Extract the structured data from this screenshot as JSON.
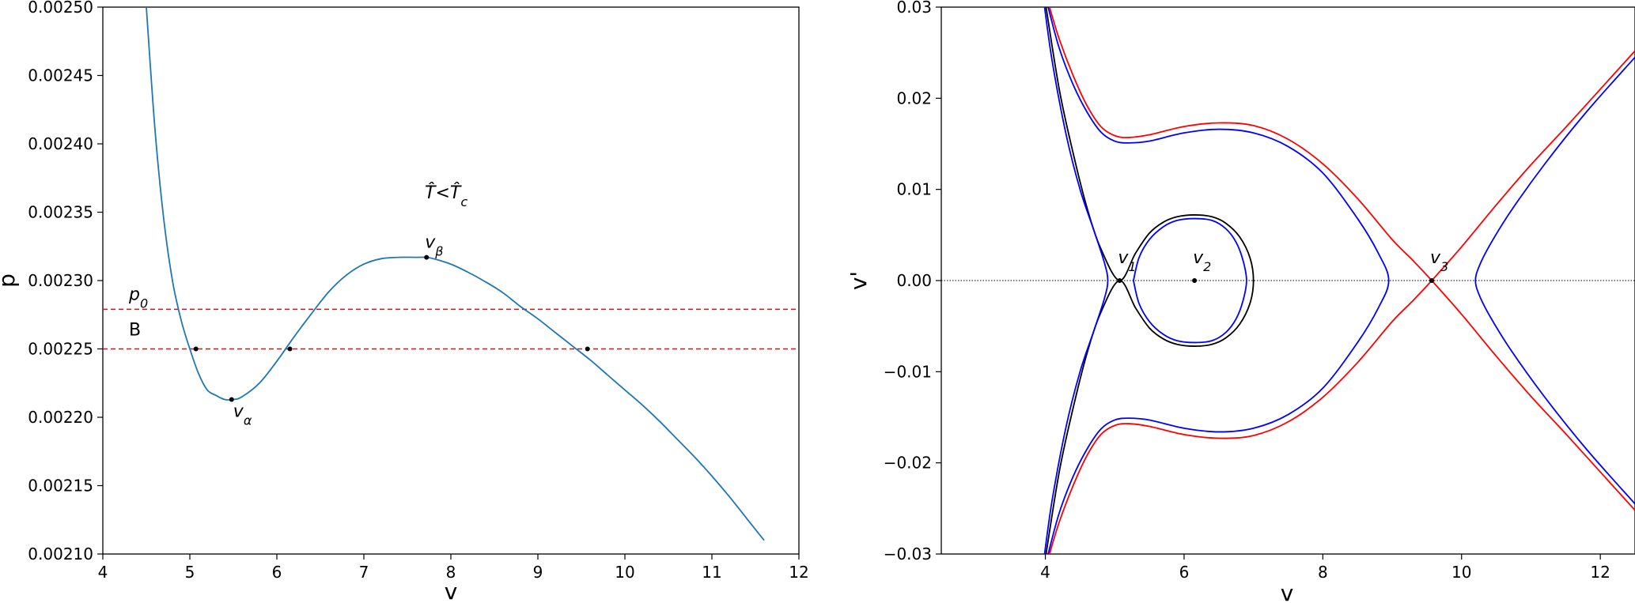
{
  "chart_data": [
    {
      "type": "line",
      "xlabel": "v",
      "ylabel": "p",
      "xlim": [
        4,
        12
      ],
      "ylim": [
        0.0021,
        0.0025
      ],
      "xticks": [
        "4",
        "5",
        "6",
        "7",
        "8",
        "9",
        "10",
        "11",
        "12"
      ],
      "yticks": [
        "0.00210",
        "0.00215",
        "0.00220",
        "0.00225",
        "0.00230",
        "0.00235",
        "0.00240",
        "0.00245",
        "0.00250"
      ],
      "annotations": {
        "condition": "T̂<T̂c",
        "p0": "p0",
        "B": "B",
        "v_alpha": "vα",
        "v_beta": "vβ"
      },
      "series": [
        {
          "color": "#1f77b4",
          "x": [
            4.5,
            4.6,
            4.7,
            4.8,
            4.9,
            5.0,
            5.1,
            5.2,
            5.3,
            5.4,
            5.5,
            5.6,
            5.8,
            6.0,
            6.2,
            6.4,
            6.6,
            6.8,
            7.0,
            7.2,
            7.4,
            7.6,
            7.72,
            7.8,
            8.0,
            8.2,
            8.4,
            8.6,
            8.8,
            9.0,
            9.2,
            9.4,
            9.6,
            9.8,
            10.0,
            10.2,
            10.4,
            10.6,
            10.8,
            11.0,
            11.2,
            11.4,
            11.6
          ],
          "y": [
            0.0025,
            0.00241,
            0.002345,
            0.0023,
            0.002271,
            0.00225,
            0.002232,
            0.00222,
            0.002216,
            0.002213,
            0.002213,
            0.002215,
            0.002225,
            0.002241,
            0.002259,
            0.002276,
            0.002292,
            0.002304,
            0.002312,
            0.002316,
            0.002317,
            0.002317,
            0.002317,
            0.002316,
            0.002312,
            0.002306,
            0.002299,
            0.002291,
            0.002281,
            0.002272,
            0.002262,
            0.002252,
            0.002242,
            0.002231,
            0.00222,
            0.002209,
            0.002197,
            0.002184,
            0.002171,
            0.002157,
            0.002142,
            0.002126,
            0.00211
          ]
        }
      ],
      "hlines": [
        {
          "y": 0.002279,
          "color": "#ff0000",
          "style": "dashed"
        },
        {
          "y": 0.00225,
          "color": "#ff0000",
          "style": "dashed"
        }
      ],
      "points": [
        {
          "x": 5.07,
          "y": 0.00225
        },
        {
          "x": 6.15,
          "y": 0.00225
        },
        {
          "x": 9.57,
          "y": 0.00225
        },
        {
          "x": 5.48,
          "y": 0.002213
        },
        {
          "x": 7.72,
          "y": 0.002317
        }
      ]
    },
    {
      "type": "line",
      "xlabel": "v",
      "ylabel": "v'",
      "xlim": [
        2.5,
        12.5
      ],
      "ylim": [
        -0.03,
        0.03
      ],
      "xticks": [
        "4",
        "6",
        "8",
        "10",
        "12"
      ],
      "yticks": [
        "−0.03",
        "−0.02",
        "−0.01",
        "0.00",
        "0.01",
        "0.02",
        "0.03"
      ],
      "annotations": {
        "v1": "v1",
        "v2": "v2",
        "v3": "v3"
      },
      "hline": {
        "y": 0.0,
        "color": "#000000",
        "style": "dotted"
      },
      "points": [
        {
          "x": 5.07,
          "y": 0.0
        },
        {
          "x": 6.15,
          "y": 0.0
        },
        {
          "x": 9.57,
          "y": 0.0
        }
      ],
      "series": [
        {
          "color": "#000000",
          "x": [
            4.0,
            4.2,
            4.4,
            4.6,
            4.8,
            5.07,
            5.3,
            5.5,
            5.7,
            5.9,
            6.15,
            6.4,
            6.6,
            6.8,
            6.95,
            7.0,
            6.95,
            6.8,
            6.6,
            6.4,
            6.15,
            5.9,
            5.7,
            5.5,
            5.3,
            5.07,
            4.8,
            4.6,
            4.4,
            4.2,
            4.0
          ],
          "y": [
            0.0305,
            0.021,
            0.014,
            0.008,
            0.0035,
            0.0,
            0.003,
            0.0052,
            0.0064,
            0.007,
            0.0072,
            0.007,
            0.0063,
            0.0048,
            0.0025,
            0.0,
            -0.0025,
            -0.0048,
            -0.0063,
            -0.007,
            -0.0072,
            -0.007,
            -0.0064,
            -0.0052,
            -0.003,
            0.0,
            -0.0035,
            -0.008,
            -0.014,
            -0.021,
            -0.0305
          ]
        },
        {
          "color": "#0000ff",
          "x": [
            5.27,
            5.35,
            5.5,
            5.7,
            5.9,
            6.15,
            6.4,
            6.6,
            6.75,
            6.85,
            6.9,
            6.85,
            6.75,
            6.6,
            6.4,
            6.15,
            5.9,
            5.7,
            5.5,
            5.35,
            5.27
          ],
          "y": [
            0.0,
            0.0025,
            0.0045,
            0.0059,
            0.0066,
            0.0068,
            0.0066,
            0.0057,
            0.0042,
            0.0022,
            0.0,
            -0.0022,
            -0.0042,
            -0.0057,
            -0.0066,
            -0.0068,
            -0.0066,
            -0.0059,
            -0.0045,
            -0.0025,
            0.0
          ]
        },
        {
          "color": "#0000ff",
          "x": [
            3.98,
            4.1,
            4.3,
            4.5,
            4.7,
            4.85,
            4.9,
            4.85,
            4.7,
            4.5,
            4.3,
            4.1,
            3.98
          ],
          "y": [
            0.0305,
            0.024,
            0.016,
            0.01,
            0.0055,
            0.002,
            0.0,
            -0.002,
            -0.0055,
            -0.01,
            -0.016,
            -0.024,
            -0.0305
          ]
        },
        {
          "color": "#0000ff",
          "x": [
            4.04,
            4.2,
            4.4,
            4.6,
            4.8,
            5.0,
            5.2,
            5.5,
            6.0,
            6.5,
            7.0,
            7.5,
            8.0,
            8.5,
            8.8,
            8.95,
            8.8,
            8.5,
            8.0,
            7.5,
            7.0,
            6.5,
            6.0,
            5.5,
            5.2,
            5.0,
            4.8,
            4.6,
            4.4,
            4.2,
            4.04
          ],
          "y": [
            0.03,
            0.0255,
            0.0215,
            0.0185,
            0.0163,
            0.0153,
            0.0151,
            0.0153,
            0.0162,
            0.0166,
            0.0162,
            0.0147,
            0.0118,
            0.0068,
            0.003,
            0.0,
            -0.003,
            -0.0068,
            -0.0118,
            -0.0147,
            -0.0162,
            -0.0166,
            -0.0162,
            -0.0153,
            -0.0151,
            -0.0153,
            -0.0163,
            -0.0185,
            -0.0215,
            -0.0255,
            -0.03
          ]
        },
        {
          "color": "#0000ff",
          "x": [
            12.5,
            11.8,
            11.2,
            10.7,
            10.4,
            10.25,
            10.2,
            10.25,
            10.4,
            10.7,
            11.2,
            11.8,
            12.5
          ],
          "y": [
            0.0245,
            0.0185,
            0.0128,
            0.0075,
            0.0038,
            0.0015,
            0.0,
            -0.0015,
            -0.0038,
            -0.0075,
            -0.0128,
            -0.0185,
            -0.0245
          ]
        },
        {
          "color": "#ff0000",
          "x": [
            4.06,
            4.2,
            4.4,
            4.6,
            4.8,
            5.0,
            5.2,
            5.5,
            6.0,
            6.5,
            7.0,
            7.5,
            8.0,
            8.5,
            9.0,
            9.3,
            9.57,
            10.0,
            10.5,
            11.0,
            11.5,
            12.0,
            12.5
          ],
          "y": [
            0.03,
            0.0265,
            0.0225,
            0.0192,
            0.0169,
            0.0159,
            0.0157,
            0.016,
            0.0169,
            0.0173,
            0.017,
            0.0155,
            0.0128,
            0.009,
            0.0045,
            0.0022,
            0.0,
            -0.0037,
            -0.0083,
            -0.0127,
            -0.0168,
            -0.021,
            -0.0252
          ]
        },
        {
          "color": "#ff0000",
          "x": [
            4.06,
            4.2,
            4.4,
            4.6,
            4.8,
            5.0,
            5.2,
            5.5,
            6.0,
            6.5,
            7.0,
            7.5,
            8.0,
            8.5,
            9.0,
            9.3,
            9.57,
            10.0,
            10.5,
            11.0,
            11.5,
            12.0,
            12.5
          ],
          "y": [
            -0.03,
            -0.0265,
            -0.0225,
            -0.0192,
            -0.0169,
            -0.0159,
            -0.0157,
            -0.016,
            -0.0169,
            -0.0173,
            -0.017,
            -0.0155,
            -0.0128,
            -0.009,
            -0.0045,
            -0.0022,
            0.0,
            0.0037,
            0.0083,
            0.0127,
            0.0168,
            0.021,
            0.0252
          ]
        }
      ]
    }
  ]
}
